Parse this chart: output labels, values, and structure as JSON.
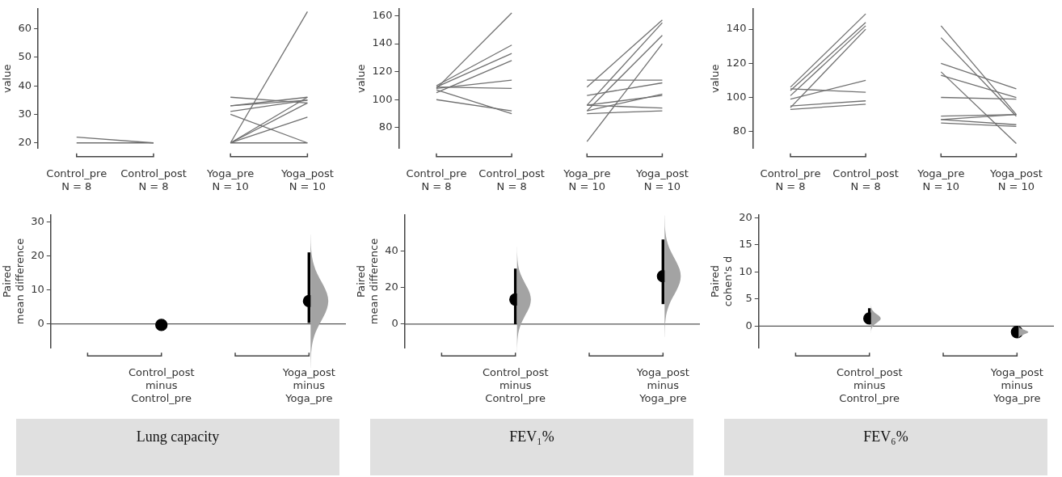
{
  "chart_data": [
    {
      "type": "line",
      "ylabel": "value",
      "categories": [
        "Control_pre\nN = 8",
        "Control_post\nN = 8",
        "Yoga_pre\nN = 10",
        "Yoga_post\nN = 10"
      ],
      "ylim": [
        18,
        67
      ],
      "yticks": [
        20,
        30,
        40,
        50,
        60
      ],
      "marker": "none",
      "series": [
        {
          "color": "#707070",
          "values": [
            22,
            20,
            null,
            null
          ]
        },
        {
          "color": "#707070",
          "values": [
            20,
            20,
            null,
            null
          ]
        },
        {
          "color": "#707070",
          "values": [
            null,
            null,
            20,
            66
          ]
        },
        {
          "color": "#707070",
          "values": [
            null,
            null,
            36,
            34
          ]
        },
        {
          "color": "#707070",
          "values": [
            null,
            null,
            33,
            36
          ]
        },
        {
          "color": "#707070",
          "values": [
            null,
            null,
            33,
            35
          ]
        },
        {
          "color": "#707070",
          "values": [
            null,
            null,
            31,
            35
          ]
        },
        {
          "color": "#707070",
          "values": [
            null,
            null,
            30,
            20
          ]
        },
        {
          "color": "#707070",
          "values": [
            null,
            null,
            20,
            36
          ]
        },
        {
          "color": "#707070",
          "values": [
            null,
            null,
            20,
            29
          ]
        },
        {
          "color": "#707070",
          "values": [
            null,
            null,
            20,
            20
          ]
        },
        {
          "color": "#707070",
          "values": [
            null,
            null,
            20,
            34
          ]
        }
      ]
    },
    {
      "type": "line",
      "ylabel": "value",
      "categories": [
        "Control_pre\nN = 8",
        "Control_post\nN = 8",
        "Yoga_pre\nN = 10",
        "Yoga_post\nN = 10"
      ],
      "ylim": [
        65,
        165
      ],
      "yticks": [
        80,
        100,
        120,
        140,
        160
      ],
      "marker": "none",
      "series": [
        {
          "color": "#707070",
          "values": [
            108,
            162,
            null,
            null
          ]
        },
        {
          "color": "#707070",
          "values": [
            110,
            139,
            null,
            null
          ]
        },
        {
          "color": "#707070",
          "values": [
            109,
            133,
            null,
            null
          ]
        },
        {
          "color": "#707070",
          "values": [
            105,
            128,
            null,
            null
          ]
        },
        {
          "color": "#707070",
          "values": [
            108,
            114,
            null,
            null
          ]
        },
        {
          "color": "#707070",
          "values": [
            109,
            108,
            null,
            null
          ]
        },
        {
          "color": "#707070",
          "values": [
            100,
            92,
            null,
            null
          ]
        },
        {
          "color": "#707070",
          "values": [
            107,
            90,
            null,
            null
          ]
        },
        {
          "color": "#707070",
          "values": [
            null,
            null,
            109,
            157
          ]
        },
        {
          "color": "#707070",
          "values": [
            null,
            null,
            96,
            155
          ]
        },
        {
          "color": "#707070",
          "values": [
            null,
            null,
            92,
            146
          ]
        },
        {
          "color": "#707070",
          "values": [
            null,
            null,
            70,
            140
          ]
        },
        {
          "color": "#707070",
          "values": [
            null,
            null,
            114,
            114
          ]
        },
        {
          "color": "#707070",
          "values": [
            null,
            null,
            103,
            112
          ]
        },
        {
          "color": "#707070",
          "values": [
            null,
            null,
            92,
            104
          ]
        },
        {
          "color": "#707070",
          "values": [
            null,
            null,
            96,
            103
          ]
        },
        {
          "color": "#707070",
          "values": [
            null,
            null,
            96,
            94
          ]
        },
        {
          "color": "#707070",
          "values": [
            null,
            null,
            90,
            92
          ]
        }
      ]
    },
    {
      "type": "line",
      "ylabel": "value",
      "categories": [
        "Control_pre\nN = 8",
        "Control_post\nN = 8",
        "Yoga_pre\nN = 10",
        "Yoga_post\nN = 10"
      ],
      "ylim": [
        70,
        152
      ],
      "yticks": [
        80,
        100,
        120,
        140
      ],
      "marker": "none",
      "series": [
        {
          "color": "#707070",
          "values": [
            106,
            149,
            null,
            null
          ]
        },
        {
          "color": "#707070",
          "values": [
            104,
            144,
            null,
            null
          ]
        },
        {
          "color": "#707070",
          "values": [
            101,
            142,
            null,
            null
          ]
        },
        {
          "color": "#707070",
          "values": [
            94,
            140,
            null,
            null
          ]
        },
        {
          "color": "#707070",
          "values": [
            99,
            110,
            null,
            null
          ]
        },
        {
          "color": "#707070",
          "values": [
            105,
            103,
            null,
            null
          ]
        },
        {
          "color": "#707070",
          "values": [
            95,
            98,
            null,
            null
          ]
        },
        {
          "color": "#707070",
          "values": [
            93,
            96,
            null,
            null
          ]
        },
        {
          "color": "#707070",
          "values": [
            null,
            null,
            142,
            90
          ]
        },
        {
          "color": "#707070",
          "values": [
            null,
            null,
            135,
            89
          ]
        },
        {
          "color": "#707070",
          "values": [
            null,
            null,
            120,
            105
          ]
        },
        {
          "color": "#707070",
          "values": [
            null,
            null,
            113,
            100
          ]
        },
        {
          "color": "#707070",
          "values": [
            null,
            null,
            115,
            73
          ]
        },
        {
          "color": "#707070",
          "values": [
            null,
            null,
            100,
            99
          ]
        },
        {
          "color": "#707070",
          "values": [
            null,
            null,
            89,
            90
          ]
        },
        {
          "color": "#707070",
          "values": [
            null,
            null,
            87,
            84
          ]
        },
        {
          "color": "#707070",
          "values": [
            null,
            null,
            87,
            90
          ]
        },
        {
          "color": "#707070",
          "values": [
            null,
            null,
            85,
            83
          ]
        }
      ]
    },
    {
      "type": "scatter",
      "ylabel": "Paired\nmean difference",
      "categories": [
        null,
        "Control_post\nminus\nControl_pre",
        null,
        "Yoga_post\nminus\nYoga_pre"
      ],
      "ylim": [
        -7,
        32
      ],
      "yticks": [
        0,
        10,
        20,
        30
      ],
      "marker": "circle",
      "ref_lines": [
        {
          "axis": "y",
          "value": 0,
          "color": "#555555"
        }
      ],
      "annotations": [
        "Lung capacity"
      ],
      "series": [
        {
          "color": "#000000",
          "values": [
            null,
            -0.3,
            null,
            6.7
          ],
          "errors": [
            null,
            null,
            null,
            [
              0.3,
              21
            ]
          ]
        }
      ]
    },
    {
      "type": "scatter",
      "ylabel": "Paired\nmean difference",
      "categories": [
        null,
        "Control_post\nminus\nControl_pre",
        null,
        "Yoga_post\nminus\nYoga_pre"
      ],
      "ylim": [
        -13,
        60
      ],
      "yticks": [
        0,
        20,
        40
      ],
      "marker": "circle",
      "ref_lines": [
        {
          "axis": "y",
          "value": 0,
          "color": "#555555"
        }
      ],
      "annotations": [
        "FEV₁%"
      ],
      "series": [
        {
          "color": "#000000",
          "values": [
            null,
            13.5,
            null,
            26.3
          ],
          "errors": [
            null,
            [
              0,
              30.5
            ],
            null,
            [
              11,
              46.5
            ]
          ]
        }
      ]
    },
    {
      "type": "scatter",
      "ylabel": "Paired\ncohen's d",
      "categories": [
        null,
        "Control_post\nminus\nControl_pre",
        null,
        "Yoga_post\nminus\nYoga_pre"
      ],
      "ylim": [
        -4,
        20.5
      ],
      "yticks": [
        0,
        5,
        10,
        15,
        20
      ],
      "marker": "circle",
      "ref_lines": [
        {
          "axis": "y",
          "value": 0,
          "color": "#555555"
        }
      ],
      "annotations": [
        "FEV₆%"
      ],
      "series": [
        {
          "color": "#000000",
          "values": [
            null,
            1.4,
            null,
            -1.1
          ],
          "errors": [
            null,
            [
              0.5,
              3.3
            ],
            null,
            [
              -2,
              -0.6
            ]
          ]
        }
      ]
    }
  ]
}
